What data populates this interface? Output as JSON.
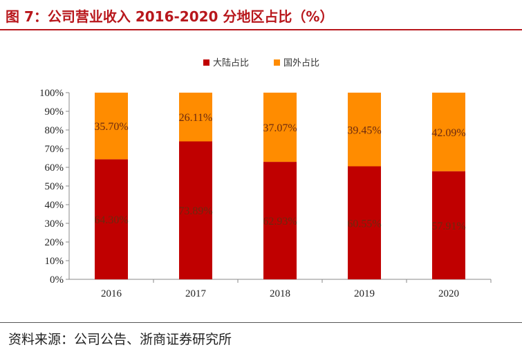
{
  "figure": {
    "title": "图 7：公司营业收入 2016-2020 分地区占比（%）",
    "source": "资料来源：公司公告、浙商证券研究所"
  },
  "chart_data": {
    "type": "bar",
    "stacked": true,
    "categories": [
      "2016",
      "2017",
      "2018",
      "2019",
      "2020"
    ],
    "series": [
      {
        "name": "大陆占比",
        "color": "#c00000",
        "values": [
          64.3,
          73.89,
          62.93,
          60.55,
          57.91
        ],
        "labels": [
          "64.30%",
          "73.89%",
          "62.93%",
          "60.55%",
          "57.91%"
        ]
      },
      {
        "name": "国外占比",
        "color": "#ff8c00",
        "values": [
          35.7,
          26.11,
          37.07,
          39.45,
          42.09
        ],
        "labels": [
          "35.70%",
          "26.11%",
          "37.07%",
          "39.45%",
          "42.09%"
        ]
      }
    ],
    "yticks": [
      "0%",
      "10%",
      "20%",
      "30%",
      "40%",
      "50%",
      "60%",
      "70%",
      "80%",
      "90%",
      "100%"
    ],
    "ylim": [
      0,
      100
    ],
    "legend_position": "top-center",
    "grid": false
  }
}
